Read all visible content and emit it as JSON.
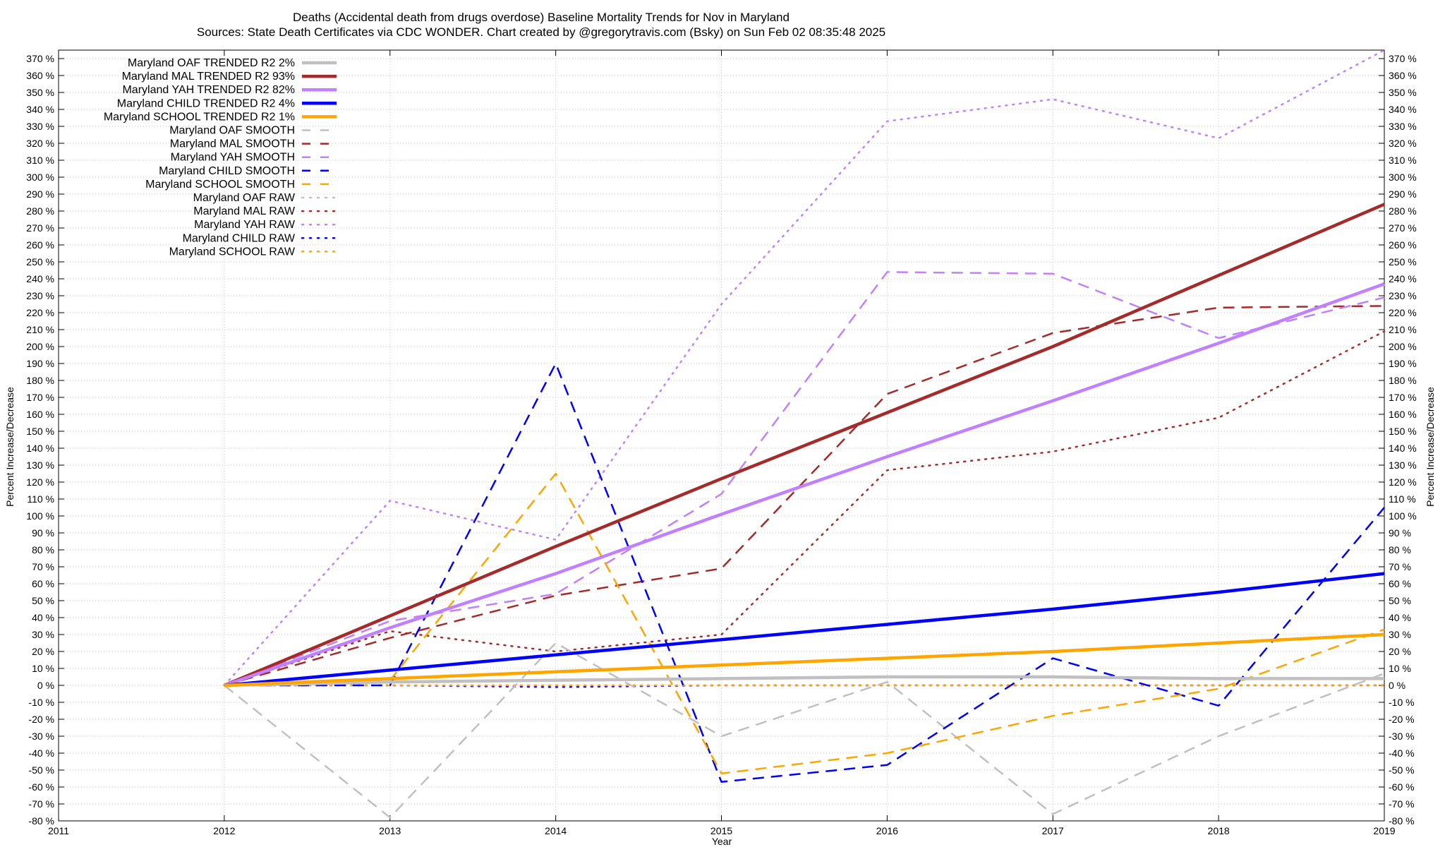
{
  "chart_data": {
    "type": "line",
    "title": "Deaths (Accidental death from drugs overdose)  Baseline Mortality Trends for Nov in Maryland",
    "subtitle": "Sources: State Death Certificates via CDC WONDER.              Chart created by @gregorytravis.com (Bsky) on Sun Feb 02 08:35:48 2025",
    "xlabel": "Year",
    "ylabel": "Percent Increase/Decrease",
    "y2label": "Percent Increase/Decrease",
    "xlim": [
      2011,
      2019
    ],
    "ylim": [
      -80,
      375
    ],
    "xticks": [
      "2011",
      "2012",
      "2013",
      "2014",
      "2015",
      "2016",
      "2017",
      "2018",
      "2019"
    ],
    "yticks": [
      "-80 %",
      "-70 %",
      "-60 %",
      "-50 %",
      "-40 %",
      "-30 %",
      "-20 %",
      "-10 %",
      "0 %",
      "10 %",
      "20 %",
      "30 %",
      "40 %",
      "50 %",
      "60 %",
      "70 %",
      "80 %",
      "90 %",
      "100 %",
      "110 %",
      "120 %",
      "130 %",
      "140 %",
      "150 %",
      "160 %",
      "170 %",
      "180 %",
      "190 %",
      "200 %",
      "210 %",
      "220 %",
      "230 %",
      "240 %",
      "250 %",
      "260 %",
      "270 %",
      "280 %",
      "290 %",
      "300 %",
      "310 %",
      "320 %",
      "330 %",
      "340 %",
      "350 %",
      "360 %",
      "370 %"
    ],
    "grid": true,
    "legend_position": "top-left",
    "x": [
      2012,
      2013,
      2014,
      2015,
      2016,
      2017,
      2018,
      2019
    ],
    "series": [
      {
        "name": "Maryland OAF TRENDED R2  2%",
        "style": "solid",
        "width": 4.5,
        "color": "#c0c0c0",
        "values": [
          0,
          2,
          3,
          4,
          5,
          5,
          4,
          4
        ]
      },
      {
        "name": "Maryland MAL TRENDED R2  93%",
        "style": "solid",
        "width": 4.5,
        "color": "#a52a2a",
        "values": [
          0,
          41,
          82,
          122,
          161,
          200,
          242,
          284
        ]
      },
      {
        "name": "Maryland YAH TRENDED R2  82%",
        "style": "solid",
        "width": 4.5,
        "color": "#c080ff",
        "values": [
          0,
          34,
          66,
          101,
          135,
          168,
          202,
          237
        ]
      },
      {
        "name": "Maryland CHILD TRENDED R2  4%",
        "style": "solid",
        "width": 4.5,
        "color": "#0000ff",
        "values": [
          0,
          9,
          18,
          27,
          36,
          45,
          55,
          66
        ]
      },
      {
        "name": "Maryland SCHOOL TRENDED R2  1%",
        "style": "solid",
        "width": 4.5,
        "color": "#ffa500",
        "values": [
          0,
          4,
          8,
          12,
          16,
          20,
          25,
          30
        ]
      },
      {
        "name": "Maryland OAF SMOOTH",
        "style": "dashed",
        "width": 2.5,
        "color": "#c0c0c0",
        "values": [
          0,
          -78,
          25,
          -30,
          2,
          -76,
          -30,
          7
        ]
      },
      {
        "name": "Maryland MAL SMOOTH",
        "style": "dashed",
        "width": 2.5,
        "color": "#a52a2a",
        "values": [
          0,
          28,
          53,
          69,
          172,
          208,
          223,
          224
        ]
      },
      {
        "name": "Maryland YAH SMOOTH",
        "style": "dashed",
        "width": 2.5,
        "color": "#c080ff",
        "values": [
          0,
          38,
          54,
          113,
          244,
          243,
          205,
          229
        ]
      },
      {
        "name": "Maryland CHILD SMOOTH",
        "style": "dashed",
        "width": 2.5,
        "color": "#0000ff",
        "values": [
          0,
          0,
          190,
          -57,
          -47,
          16,
          -12,
          105
        ]
      },
      {
        "name": "Maryland SCHOOL SMOOTH",
        "style": "dashed",
        "width": 2.5,
        "color": "#ffa500",
        "values": [
          0,
          3,
          125,
          -52,
          -40,
          -18,
          -2,
          33
        ]
      },
      {
        "name": "Maryland OAF RAW",
        "style": "dotted",
        "width": 2.5,
        "color": "#c0c0c0",
        "values": [
          0,
          0,
          0,
          0,
          0,
          0,
          0,
          0
        ]
      },
      {
        "name": "Maryland MAL RAW",
        "style": "dotted",
        "width": 2.5,
        "color": "#a52a2a",
        "values": [
          0,
          32,
          20,
          30,
          127,
          138,
          158,
          209
        ]
      },
      {
        "name": "Maryland YAH RAW",
        "style": "dotted",
        "width": 2.5,
        "color": "#c080ff",
        "values": [
          0,
          109,
          86,
          225,
          333,
          346,
          323,
          375
        ]
      },
      {
        "name": "Maryland CHILD RAW",
        "style": "dotted",
        "width": 2.5,
        "color": "#0000ff",
        "values": [
          0,
          0,
          -1,
          0,
          0,
          0,
          0,
          0
        ]
      },
      {
        "name": "Maryland SCHOOL RAW",
        "style": "dotted",
        "width": 2.5,
        "color": "#ffa500",
        "values": [
          0,
          0,
          0,
          0,
          0,
          0,
          0,
          0
        ]
      }
    ]
  }
}
